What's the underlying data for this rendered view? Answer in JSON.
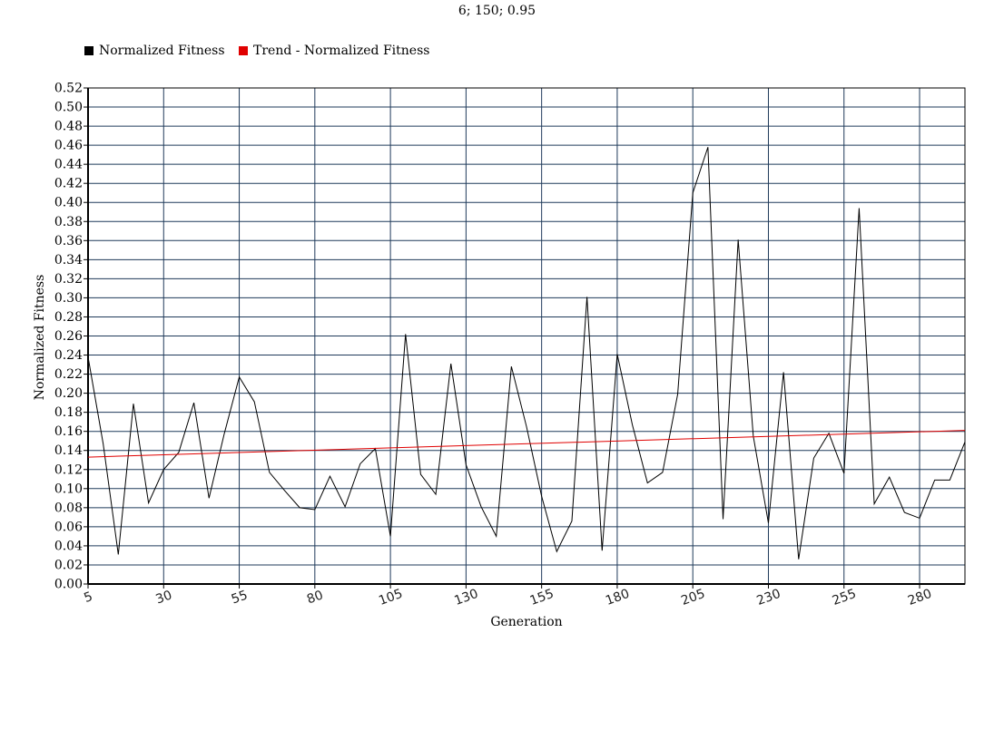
{
  "chart_data": {
    "type": "line",
    "title": "6; 150; 0.95",
    "xlabel": "Generation",
    "ylabel": "Normalized Fitness",
    "xlim": [
      5,
      295
    ],
    "ylim": [
      0,
      0.52
    ],
    "x_ticks": [
      5,
      30,
      55,
      80,
      105,
      130,
      155,
      180,
      205,
      230,
      255,
      280
    ],
    "y_ticks": [
      "0.00",
      "0.02",
      "0.04",
      "0.06",
      "0.08",
      "0.10",
      "0.12",
      "0.14",
      "0.16",
      "0.18",
      "0.20",
      "0.22",
      "0.24",
      "0.26",
      "0.28",
      "0.30",
      "0.32",
      "0.34",
      "0.36",
      "0.38",
      "0.40",
      "0.42",
      "0.44",
      "0.46",
      "0.48",
      "0.50",
      "0.52"
    ],
    "grid": true,
    "legend_position": "top-left",
    "series": [
      {
        "name": "Normalized Fitness",
        "color": "#000000",
        "x": [
          5,
          10,
          15,
          20,
          25,
          30,
          35,
          40,
          45,
          50,
          55,
          60,
          65,
          70,
          75,
          80,
          85,
          90,
          95,
          100,
          105,
          110,
          115,
          120,
          125,
          130,
          135,
          140,
          145,
          150,
          155,
          160,
          165,
          170,
          175,
          180,
          185,
          190,
          195,
          200,
          205,
          210,
          215,
          220,
          225,
          230,
          235,
          240,
          245,
          250,
          255,
          260,
          265,
          270,
          275,
          280,
          285,
          290,
          295
        ],
        "y": [
          0.238,
          0.147,
          0.031,
          0.189,
          0.085,
          0.12,
          0.138,
          0.19,
          0.09,
          0.157,
          0.217,
          0.191,
          0.117,
          0.098,
          0.08,
          0.078,
          0.113,
          0.081,
          0.126,
          0.142,
          0.05,
          0.262,
          0.115,
          0.094,
          0.231,
          0.125,
          0.081,
          0.05,
          0.228,
          0.165,
          0.092,
          0.034,
          0.066,
          0.301,
          0.035,
          0.241,
          0.167,
          0.106,
          0.117,
          0.199,
          0.41,
          0.458,
          0.068,
          0.361,
          0.155,
          0.064,
          0.222,
          0.026,
          0.132,
          0.158,
          0.116,
          0.394,
          0.084,
          0.112,
          0.075,
          0.069,
          0.109,
          0.109,
          0.149
        ]
      },
      {
        "name": "Trend - Normalized Fitness",
        "color": "#e00000",
        "type": "trend",
        "x": [
          5,
          295
        ],
        "y": [
          0.133,
          0.161
        ]
      }
    ]
  }
}
